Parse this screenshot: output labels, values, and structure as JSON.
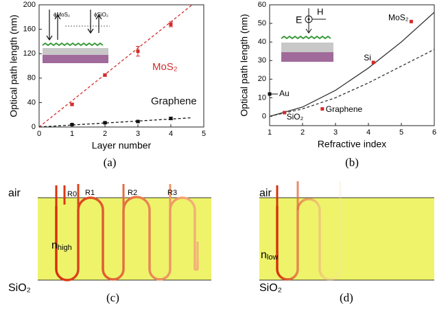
{
  "chart_data": [
    {
      "type": "scatter",
      "xlabel": "Layer number",
      "ylabel": "Optical path length (nm)",
      "panel_label": "(a)",
      "xlim": [
        0,
        5
      ],
      "xticks": [
        0,
        1,
        2,
        3,
        4,
        5
      ],
      "ylim": [
        0,
        200
      ],
      "yticks": [
        0,
        40,
        80,
        120,
        160,
        200
      ],
      "series": [
        {
          "name": "MoS₂",
          "color": "#d42a2a",
          "x": [
            1,
            2,
            3,
            4
          ],
          "values": [
            37,
            85,
            124,
            168
          ],
          "errors": [
            2,
            2,
            8,
            4
          ]
        },
        {
          "name": "Graphene",
          "color": "#111111",
          "x": [
            1,
            2,
            3,
            4
          ],
          "values": [
            4,
            7,
            9,
            14
          ],
          "errors": [
            1,
            1,
            1,
            2
          ]
        }
      ],
      "lines": [
        {
          "color": "#d42a2a",
          "dashed": true,
          "x": [
            0,
            4.65
          ],
          "values": [
            0,
            200
          ]
        },
        {
          "color": "#111111",
          "dashed": true,
          "x": [
            0,
            4.6
          ],
          "values": [
            0,
            15
          ]
        }
      ],
      "inset_labels": [
        "ϕMoS₂",
        "ϕSiO₂"
      ]
    },
    {
      "type": "scatter",
      "xlabel": "Refractive index",
      "ylabel": "Optical path length (nm)",
      "panel_label": "(b)",
      "xlim": [
        1,
        6
      ],
      "xticks": [
        1,
        2,
        3,
        4,
        5,
        6
      ],
      "ylim": [
        -5,
        60
      ],
      "yticks": [
        0,
        10,
        20,
        30,
        40,
        50,
        60
      ],
      "series": [
        {
          "x": [
            1,
            1.45,
            2.6,
            4.15,
            5.3
          ],
          "values": [
            12,
            2,
            4,
            29,
            51
          ],
          "point_labels": [
            "Au",
            "SiO₂",
            "Graphene",
            "Si",
            "MoS₂"
          ],
          "colors": [
            "#111111",
            "#d42a2a",
            "#d42a2a",
            "#d42a2a",
            "#d42a2a"
          ]
        }
      ],
      "lines": [
        {
          "color": "#333333",
          "dashed": false,
          "x": [
            1,
            2,
            3,
            4,
            5,
            6
          ],
          "values": [
            0,
            5,
            14,
            26,
            40,
            56
          ]
        },
        {
          "color": "#333333",
          "dashed": true,
          "x": [
            1,
            2,
            3,
            4,
            5,
            6
          ],
          "values": [
            0,
            4,
            10,
            18,
            27,
            36
          ]
        }
      ],
      "inset_labels": [
        "E",
        "H"
      ]
    }
  ],
  "diagrams": [
    {
      "label": "(c)",
      "top": "air",
      "bottom": "SiO₂",
      "index": "n",
      "index_sub": "high",
      "rays": [
        "R0",
        "R1",
        "R2",
        "R3"
      ]
    },
    {
      "label": "(d)",
      "top": "air",
      "bottom": "SiO₂",
      "index": "n",
      "index_sub": "low"
    }
  ]
}
